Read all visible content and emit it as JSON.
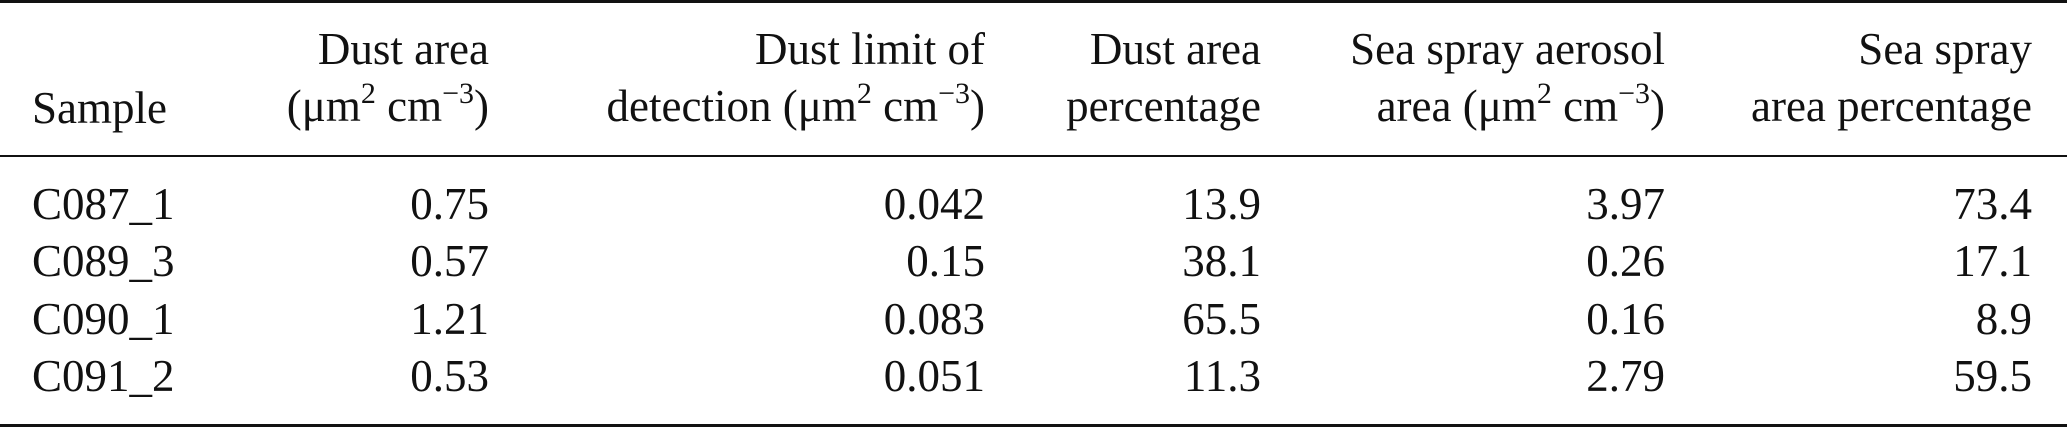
{
  "table": {
    "headers": [
      {
        "id": "sample",
        "lines": [
          "Sample"
        ]
      },
      {
        "id": "dust_area",
        "line1": "Dust area",
        "line2_prefix": "(μm",
        "sup1": "2",
        "line2_mid": " cm",
        "sup2": "−3",
        "line2_suffix": ")"
      },
      {
        "id": "dust_lod",
        "line1": "Dust limit of",
        "line2_prefix": "detection (μm",
        "sup1": "2",
        "line2_mid": " cm",
        "sup2": "−3",
        "line2_suffix": ")"
      },
      {
        "id": "dust_pct",
        "line1": "Dust area",
        "line2": "percentage"
      },
      {
        "id": "ssa_area",
        "line1": "Sea spray aerosol",
        "line2_prefix": "area (μm",
        "sup1": "2",
        "line2_mid": " cm",
        "sup2": "−3",
        "line2_suffix": ")"
      },
      {
        "id": "ss_pct",
        "line1": "Sea spray",
        "line2": "area percentage"
      }
    ],
    "rows": [
      [
        "C087_1",
        "0.75",
        "0.042",
        "13.9",
        "3.97",
        "73.4"
      ],
      [
        "C089_3",
        "0.57",
        "0.15",
        "38.1",
        "0.26",
        "17.1"
      ],
      [
        "C090_1",
        "1.21",
        "0.083",
        "65.5",
        "0.16",
        "8.9"
      ],
      [
        "C091_2",
        "0.53",
        "0.051",
        "11.3",
        "2.79",
        "59.5"
      ]
    ]
  }
}
